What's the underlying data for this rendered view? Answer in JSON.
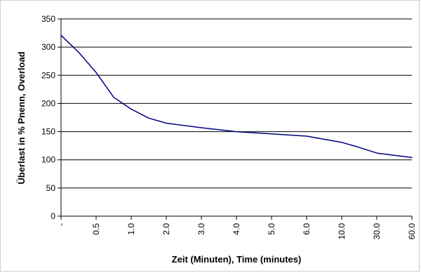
{
  "chart_data": {
    "type": "line",
    "title": "",
    "xlabel": "Zeit (Minuten), Time (minutes)",
    "ylabel": "Überlast in % Pnenn, Overload",
    "categories": [
      "-",
      "0.5",
      "1.0",
      "2.0",
      "3.0",
      "4.0",
      "5.0",
      "6.0",
      "10.0",
      "30.0",
      "60.0"
    ],
    "ylim": [
      0,
      350
    ],
    "yticks": [
      0,
      50,
      100,
      150,
      200,
      250,
      300,
      350
    ],
    "grid": true,
    "series": [
      {
        "color": "#000080",
        "points": [
          {
            "x": 0.0,
            "y": 321
          },
          {
            "x": 0.5,
            "y": 291
          },
          {
            "x": 1.0,
            "y": 255
          },
          {
            "x": 1.5,
            "y": 211
          },
          {
            "x": 2.0,
            "y": 190
          },
          {
            "x": 2.5,
            "y": 174
          },
          {
            "x": 3.0,
            "y": 165
          },
          {
            "x": 4.0,
            "y": 157
          },
          {
            "x": 5.0,
            "y": 150
          },
          {
            "x": 6.0,
            "y": 146
          },
          {
            "x": 7.0,
            "y": 142
          },
          {
            "x": 8.0,
            "y": 131
          },
          {
            "x": 8.5,
            "y": 122
          },
          {
            "x": 9.0,
            "y": 112
          },
          {
            "x": 10.0,
            "y": 104
          }
        ]
      }
    ]
  }
}
